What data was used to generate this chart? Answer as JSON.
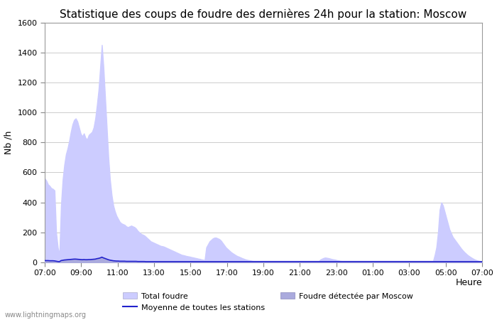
{
  "title": "Statistique des coups de foudre des dernières 24h pour la station: Moscow",
  "xlabel": "Heure",
  "ylabel": "Nb /h",
  "watermark": "www.lightningmaps.org",
  "x_labels": [
    "07:00",
    "09:00",
    "11:00",
    "13:00",
    "15:00",
    "17:00",
    "19:00",
    "21:00",
    "23:00",
    "01:00",
    "03:00",
    "05:00",
    "07:00"
  ],
  "ylim": [
    0,
    1600
  ],
  "yticks": [
    0,
    200,
    400,
    600,
    800,
    1000,
    1200,
    1400,
    1600
  ],
  "background_color": "#ffffff",
  "plot_bg_color": "#ffffff",
  "grid_color": "#cccccc",
  "total_color": "#ccccff",
  "detected_color": "#aaaadd",
  "mean_color": "#2222cc",
  "legend_total": "Total foudre",
  "legend_detected": "Foudre détectée par Moscow",
  "legend_mean": "Moyenne de toutes les stations",
  "title_fontsize": 11,
  "axis_fontsize": 9,
  "tick_fontsize": 8,
  "total_foudre": [
    560,
    545,
    520,
    510,
    495,
    490,
    480,
    200,
    100,
    50,
    380,
    550,
    650,
    720,
    760,
    810,
    870,
    920,
    950,
    960,
    940,
    900,
    860,
    840,
    860,
    830,
    820,
    850,
    860,
    870,
    900,
    960,
    1050,
    1150,
    1300,
    1450,
    1300,
    1100,
    900,
    700,
    550,
    450,
    380,
    340,
    310,
    290,
    270,
    260,
    255,
    250,
    240,
    235,
    240,
    245,
    240,
    235,
    225,
    210,
    200,
    190,
    185,
    180,
    170,
    160,
    150,
    140,
    135,
    130,
    125,
    120,
    115,
    110,
    108,
    105,
    100,
    95,
    90,
    85,
    80,
    75,
    70,
    65,
    60,
    55,
    50,
    48,
    45,
    42,
    40,
    38,
    35,
    33,
    30,
    28,
    25,
    23,
    20,
    18,
    15,
    100,
    120,
    140,
    150,
    160,
    165,
    165,
    160,
    155,
    145,
    130,
    115,
    100,
    90,
    80,
    70,
    62,
    55,
    48,
    42,
    38,
    33,
    28,
    24,
    20,
    17,
    15,
    13,
    11,
    10,
    10,
    10,
    10,
    10,
    10,
    10,
    10,
    10,
    10,
    10,
    10,
    10,
    10,
    10,
    10,
    10,
    10,
    10,
    10,
    10,
    10,
    10,
    10,
    10,
    10,
    10,
    10,
    10,
    10,
    10,
    10,
    10,
    10,
    10,
    10,
    10,
    10,
    10,
    10,
    10,
    20,
    25,
    30,
    32,
    30,
    28,
    25,
    22,
    20,
    18,
    15,
    13,
    11,
    10,
    10,
    10,
    10,
    10,
    10,
    10,
    10,
    10,
    10,
    10,
    10,
    10,
    10,
    10,
    10,
    10,
    10,
    10,
    10,
    10,
    10,
    10,
    10,
    10,
    10,
    10,
    10,
    10,
    10,
    10,
    10,
    10,
    10,
    10,
    10,
    10,
    10,
    10,
    10,
    10,
    10,
    10,
    10,
    10,
    10,
    10,
    10,
    10,
    10,
    10,
    10,
    10,
    10,
    10,
    10,
    10,
    50,
    100,
    200,
    350,
    400,
    380,
    340,
    300,
    260,
    220,
    195,
    170,
    155,
    140,
    125,
    110,
    95,
    82,
    70,
    60,
    50,
    42,
    35,
    28,
    22,
    17,
    13,
    10,
    8,
    5
  ],
  "detected_foudre": [
    10,
    10,
    10,
    10,
    10,
    10,
    10,
    5,
    5,
    5,
    10,
    12,
    14,
    15,
    16,
    17,
    18,
    19,
    20,
    20,
    19,
    18,
    17,
    16,
    17,
    16,
    16,
    17,
    17,
    18,
    19,
    20,
    22,
    24,
    28,
    32,
    28,
    24,
    20,
    16,
    14,
    12,
    10,
    9,
    9,
    8,
    8,
    8,
    8,
    8,
    7,
    7,
    7,
    7,
    7,
    7,
    7,
    7,
    6,
    6,
    6,
    6,
    6,
    5,
    5,
    5,
    5,
    5,
    5,
    5,
    5,
    5,
    5,
    5,
    5,
    5,
    5,
    5,
    5,
    5,
    5,
    5,
    5,
    5,
    5,
    5,
    5,
    5,
    5,
    5,
    5,
    5,
    5,
    5,
    5,
    5,
    5,
    5,
    5,
    5,
    5,
    5,
    5,
    5,
    5,
    5,
    5,
    5,
    5,
    5,
    5,
    5,
    5,
    5,
    5,
    5,
    5,
    5,
    5,
    5,
    5,
    5,
    5,
    5,
    5,
    5,
    5,
    5,
    5,
    5,
    5,
    5,
    5,
    5,
    5,
    5,
    5,
    5,
    5,
    5,
    5,
    5,
    5,
    5,
    5,
    5,
    5,
    5,
    5,
    5,
    5,
    5,
    5,
    5,
    5,
    5,
    5,
    5,
    5,
    5,
    5,
    5,
    5,
    5,
    5,
    5,
    5,
    5,
    5,
    5,
    5,
    5,
    5,
    5,
    5,
    5,
    5,
    5,
    5,
    5,
    5,
    5,
    5,
    5,
    5,
    5,
    5,
    5,
    5,
    5,
    5,
    5,
    5,
    5,
    5,
    5,
    5,
    5,
    5,
    5,
    5,
    5,
    5,
    5,
    5,
    5,
    5,
    5,
    5,
    5,
    5,
    5,
    5,
    5,
    5,
    5,
    5,
    5,
    5,
    5,
    5,
    5,
    5,
    5,
    5,
    5,
    5,
    5,
    5,
    5,
    5,
    5,
    5,
    5,
    5,
    5,
    5,
    5,
    5,
    5,
    5,
    5,
    5,
    5,
    5,
    5,
    5,
    5,
    5,
    5,
    5,
    5,
    5,
    5,
    5,
    5,
    5,
    5,
    5,
    5,
    5,
    5,
    5,
    5,
    5,
    5,
    5,
    5,
    5
  ],
  "mean_foudre": [
    12,
    12,
    12,
    11,
    11,
    11,
    10,
    8,
    6,
    5,
    12,
    14,
    16,
    17,
    18,
    19,
    20,
    21,
    22,
    22,
    21,
    20,
    19,
    18,
    19,
    18,
    18,
    19,
    19,
    20,
    21,
    22,
    25,
    27,
    30,
    35,
    30,
    26,
    22,
    18,
    15,
    13,
    11,
    10,
    9,
    9,
    8,
    8,
    8,
    8,
    7,
    7,
    7,
    7,
    7,
    7,
    7,
    6,
    6,
    6,
    6,
    6,
    5,
    5,
    5,
    5,
    5,
    5,
    5,
    5,
    5,
    5,
    5,
    5,
    5,
    5,
    5,
    5,
    5,
    5,
    5,
    5,
    5,
    5,
    5,
    5,
    5,
    5,
    5,
    5,
    5,
    5,
    5,
    5,
    5,
    5,
    5,
    5,
    5,
    5,
    5,
    5,
    5,
    5,
    5,
    5,
    5,
    5,
    5,
    5,
    5,
    5,
    5,
    5,
    5,
    5,
    5,
    5,
    5,
    5,
    5,
    5,
    5,
    5,
    5,
    5,
    5,
    5,
    5,
    5,
    5,
    5,
    5,
    5,
    5,
    5,
    5,
    5,
    5,
    5,
    5,
    5,
    5,
    5,
    5,
    5,
    5,
    5,
    5,
    5,
    5,
    5,
    5,
    5,
    5,
    5,
    5,
    5,
    5,
    5,
    5,
    5,
    5,
    5,
    5,
    5,
    5,
    5,
    5,
    5,
    5,
    5,
    5,
    5,
    5,
    5,
    5,
    5,
    5,
    5,
    5,
    5,
    5,
    5,
    5,
    5,
    5,
    5,
    5,
    5,
    5,
    5,
    5,
    5,
    5,
    5,
    5,
    5,
    5,
    5,
    5,
    5,
    5,
    5,
    5,
    5,
    5,
    5,
    5,
    5,
    5,
    5,
    5,
    5,
    5,
    5,
    5,
    5,
    5,
    5,
    5,
    5,
    5,
    5,
    5,
    5,
    5,
    5,
    5,
    5,
    5,
    5,
    5,
    5,
    5,
    5,
    5,
    5,
    5,
    5,
    5,
    5,
    5,
    5,
    5,
    5,
    5,
    5,
    5,
    5,
    5,
    5,
    5,
    5,
    5,
    5,
    5,
    5,
    5,
    5,
    5,
    5,
    5,
    5,
    5,
    5,
    5,
    5,
    5
  ]
}
